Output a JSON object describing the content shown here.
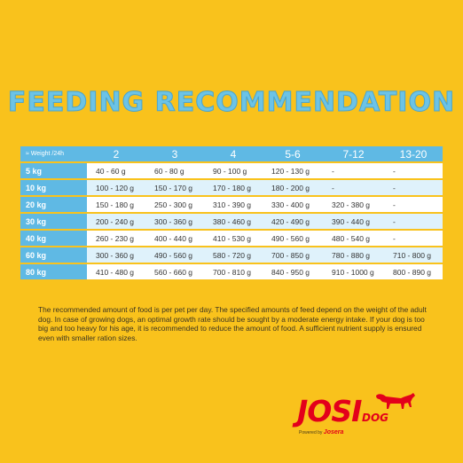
{
  "title": "FEEDING RECOMMENDATION",
  "table": {
    "corner": "≈ Weight /24h",
    "columns": [
      "2",
      "3",
      "4",
      "5-6",
      "7-12",
      "13-20"
    ],
    "rows": [
      {
        "weight": "5 kg",
        "values": [
          "40 - 60 g",
          "60 - 80 g",
          "90 - 100 g",
          "120 - 130 g",
          "-",
          "-"
        ]
      },
      {
        "weight": "10 kg",
        "values": [
          "100 - 120 g",
          "150 - 170 g",
          "170 - 180 g",
          "180 - 200 g",
          "-",
          "-"
        ]
      },
      {
        "weight": "20 kg",
        "values": [
          "150 - 180 g",
          "250 - 300 g",
          "310 - 390 g",
          "330 - 400 g",
          "320 - 380 g",
          "-"
        ]
      },
      {
        "weight": "30 kg",
        "values": [
          "200 - 240 g",
          "300 - 360 g",
          "380 - 460 g",
          "420 - 490 g",
          "390 - 440 g",
          "-"
        ]
      },
      {
        "weight": "40 kg",
        "values": [
          "260 - 230 g",
          "400 - 440 g",
          "410 - 530 g",
          "490 - 560 g",
          "480 - 540 g",
          "-"
        ]
      },
      {
        "weight": "60 kg",
        "values": [
          "300 - 360 g",
          "490 - 560 g",
          "580 - 720 g",
          "700 - 850 g",
          "780 - 880 g",
          "710 - 800 g"
        ]
      },
      {
        "weight": "80 kg",
        "values": [
          "410 - 480 g",
          "560 - 660 g",
          "700 - 810 g",
          "840 - 950 g",
          "910 - 1000 g",
          "800 - 890 g"
        ]
      }
    ]
  },
  "note": "The recommended amount of food is per pet per day. The specified amounts of feed depend on the weight of the adult dog. In case of growing dogs, an optimal growth rate should be sought by a moderate energy intake. If your dog is too big and too heavy for his age, it is recommended to reduce the amount of food. A sufficient nutrient supply is ensured even with smaller ration sizes.",
  "logo": {
    "main": "JOSI",
    "sub": "DOG",
    "powered_by": "Powered by",
    "brand": "Josera"
  },
  "colors": {
    "background": "#f9c21c",
    "accent_blue": "#5fb9e4",
    "row_alt": "#dff2fb",
    "logo_red": "#e3001b"
  }
}
